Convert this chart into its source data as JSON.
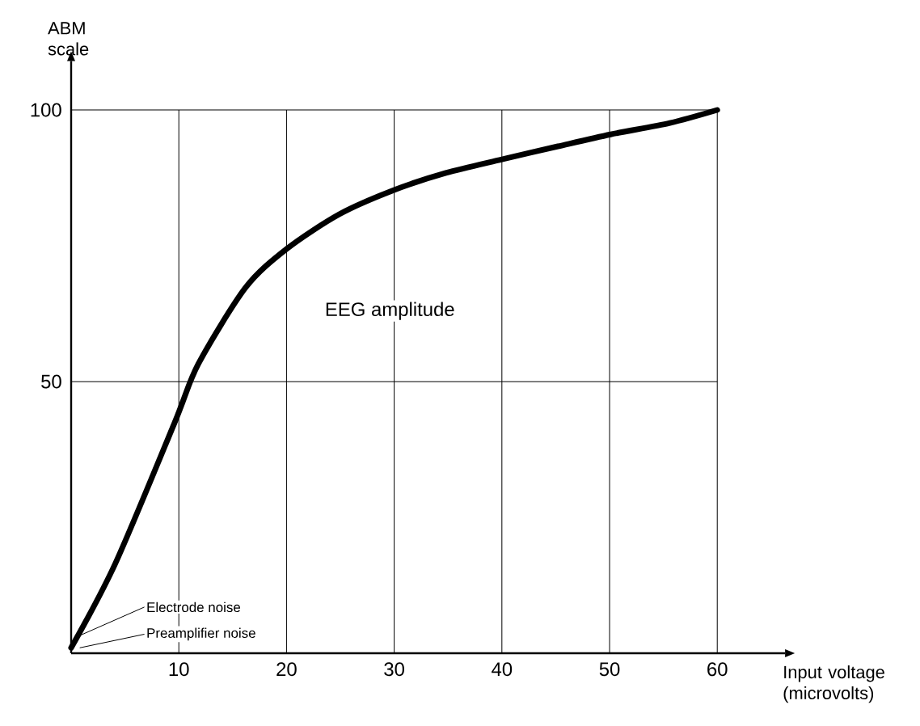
{
  "chart_data": {
    "type": "line",
    "xlabel": "Input voltage (microvolts)",
    "ylabel": "ABM scale",
    "xlim": [
      0,
      66.3
    ],
    "ylim": [
      0,
      109
    ],
    "xticks": [
      10,
      20,
      30,
      40,
      50,
      60
    ],
    "yticks": [
      50,
      100
    ],
    "grid": true,
    "marker": "none",
    "line_style": "solid",
    "series": [
      {
        "name": "EEG amplitude",
        "color": "#000000",
        "x": [
          0,
          4.1,
          9.6,
          11.8,
          16.2,
          20,
          24.9,
          29.9,
          34.8,
          40,
          45.2,
          50.1,
          55.6,
          60
        ],
        "values": [
          1,
          16.5,
          42.4,
          53.2,
          67.3,
          74.4,
          80.8,
          85.2,
          88.4,
          90.9,
          93.3,
          95.5,
          97.6,
          100
        ]
      }
    ],
    "annotations": [
      {
        "text": "Electrode noise",
        "x": 0.5,
        "y": 3
      },
      {
        "text": "Preamplifier noise",
        "x": 0.8,
        "y": 1
      }
    ]
  }
}
